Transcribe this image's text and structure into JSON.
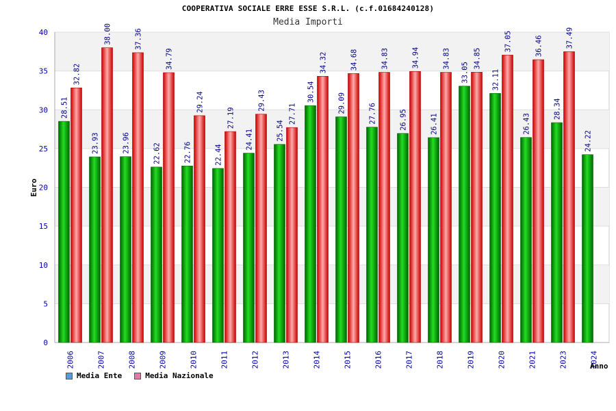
{
  "chart_data": {
    "type": "bar",
    "title": "COOPERATIVA SOCIALE ERRE ESSE S.R.L. (c.f.01684240128)",
    "subtitle": "Media Importi",
    "ylabel": "Euro",
    "xlabel": "Anno",
    "ylim": [
      0,
      40
    ],
    "yticks": [
      0,
      5,
      10,
      15,
      20,
      25,
      30,
      35,
      40
    ],
    "categories": [
      "2006",
      "2007",
      "2008",
      "2009",
      "2010",
      "2011",
      "2012",
      "2013",
      "2014",
      "2015",
      "2016",
      "2017",
      "2018",
      "2019",
      "2020",
      "2021",
      "2023",
      "2024"
    ],
    "series": [
      {
        "name": "Media Ente",
        "color": "#00aa00",
        "values": [
          28.51,
          23.93,
          23.96,
          22.62,
          22.76,
          22.44,
          24.41,
          25.54,
          30.54,
          29.09,
          27.76,
          26.95,
          26.41,
          33.05,
          32.11,
          26.43,
          28.34,
          24.22
        ],
        "labels": [
          "28.51",
          "23.93",
          "23.96",
          "22.62",
          "22.76",
          "22.44",
          "24.41",
          "25.54",
          "30.54",
          "29.09",
          "27.76",
          "26.95",
          "26.41",
          "33.05",
          "32.11",
          "26.43",
          "28.34",
          "24.22"
        ]
      },
      {
        "name": "Media Nazionale",
        "color": "#ee2222",
        "values": [
          32.82,
          38.0,
          37.36,
          34.79,
          29.24,
          27.19,
          29.43,
          27.71,
          34.32,
          34.68,
          34.83,
          34.94,
          34.83,
          34.85,
          37.05,
          36.46,
          37.49,
          null
        ],
        "labels": [
          "32.82",
          "38.00",
          "37.36",
          "34.79",
          "29.24",
          "27.19",
          "29.43",
          "27.71",
          "34.32",
          "34.68",
          "34.83",
          "34.94",
          "34.83",
          "34.85",
          "37.05",
          "36.46",
          "37.49",
          ""
        ]
      }
    ],
    "grid": true,
    "legend_position": "bottom-left",
    "legend": [
      {
        "label": "Media Ente",
        "color": "#5b9bd5"
      },
      {
        "label": "Media Nazionale",
        "color": "#e07aa8"
      }
    ]
  }
}
